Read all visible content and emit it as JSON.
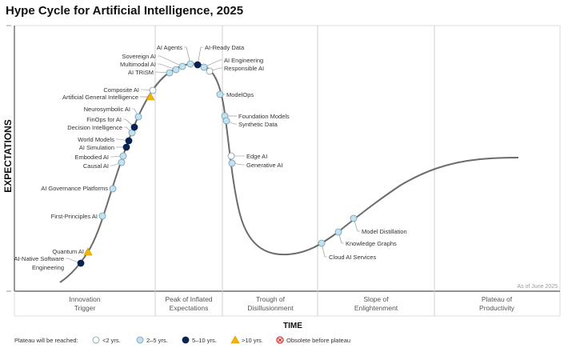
{
  "title": "Hype Cycle for Artificial Intelligence, 2025",
  "y_axis_label": "EXPECTATIONS",
  "x_axis_label": "TIME",
  "as_of": "As of June 2025",
  "phases": [
    {
      "line1": "Innovation",
      "line2": "Trigger"
    },
    {
      "line1": "Peak of Inflated",
      "line2": "Expectations"
    },
    {
      "line1": "Trough of",
      "line2": "Disillusionment"
    },
    {
      "line1": "Slope of",
      "line2": "Enlightenment"
    },
    {
      "line1": "Plateau of",
      "line2": "Productivity"
    }
  ],
  "legend": {
    "title": "Plateau will be reached:",
    "items": [
      {
        "key": "lt2",
        "label": "<2 yrs."
      },
      {
        "key": "2to5",
        "label": "2–5 yrs."
      },
      {
        "key": "5to10",
        "label": "5–10 yrs."
      },
      {
        "key": "gt10",
        "label": ">10 yrs."
      },
      {
        "key": "obsolete",
        "label": "Obsolete before plateau"
      }
    ]
  },
  "colors": {
    "lt2": "#ffffff",
    "2to5": "#bfe3f2",
    "5to10": "#0b2350",
    "gt10": "#f2b705",
    "obsolete": "#e0312b",
    "curve": "#6b6b6b"
  },
  "technologies": [
    {
      "name": "AI-Native Software Engineering",
      "plateau": "5to10",
      "phase": "Innovation Trigger"
    },
    {
      "name": "Quantum AI",
      "plateau": "gt10",
      "phase": "Innovation Trigger"
    },
    {
      "name": "First-Principles AI",
      "plateau": "2to5",
      "phase": "Innovation Trigger"
    },
    {
      "name": "AI Governance Platforms",
      "plateau": "2to5",
      "phase": "Innovation Trigger"
    },
    {
      "name": "Causal AI",
      "plateau": "2to5",
      "phase": "Innovation Trigger"
    },
    {
      "name": "Embodied AI",
      "plateau": "2to5",
      "phase": "Innovation Trigger"
    },
    {
      "name": "AI Simulation",
      "plateau": "5to10",
      "phase": "Innovation Trigger"
    },
    {
      "name": "World Models",
      "plateau": "5to10",
      "phase": "Innovation Trigger"
    },
    {
      "name": "Decision Intelligence",
      "plateau": "2to5",
      "phase": "Innovation Trigger"
    },
    {
      "name": "FinOps for AI",
      "plateau": "5to10",
      "phase": "Innovation Trigger"
    },
    {
      "name": "Neurosymbolic AI",
      "plateau": "2to5",
      "phase": "Innovation Trigger"
    },
    {
      "name": "Artificial General Intelligence",
      "plateau": "gt10",
      "phase": "Innovation Trigger"
    },
    {
      "name": "Composite AI",
      "plateau": "lt2",
      "phase": "Innovation Trigger"
    },
    {
      "name": "AI TRiSM",
      "plateau": "2to5",
      "phase": "Peak of Inflated Expectations"
    },
    {
      "name": "Multimodal AI",
      "plateau": "2to5",
      "phase": "Peak of Inflated Expectations"
    },
    {
      "name": "Sovereign AI",
      "plateau": "2to5",
      "phase": "Peak of Inflated Expectations"
    },
    {
      "name": "AI Agents",
      "plateau": "2to5",
      "phase": "Peak of Inflated Expectations"
    },
    {
      "name": "AI-Ready Data",
      "plateau": "5to10",
      "phase": "Peak of Inflated Expectations"
    },
    {
      "name": "AI Engineering",
      "plateau": "2to5",
      "phase": "Peak of Inflated Expectations"
    },
    {
      "name": "Responsible AI",
      "plateau": "lt2",
      "phase": "Peak of Inflated Expectations"
    },
    {
      "name": "ModelOps",
      "plateau": "2to5",
      "phase": "Trough of Disillusionment"
    },
    {
      "name": "Foundation Models",
      "plateau": "2to5",
      "phase": "Trough of Disillusionment"
    },
    {
      "name": "Synthetic Data",
      "plateau": "2to5",
      "phase": "Trough of Disillusionment"
    },
    {
      "name": "Edge AI",
      "plateau": "lt2",
      "phase": "Trough of Disillusionment"
    },
    {
      "name": "Generative AI",
      "plateau": "2to5",
      "phase": "Trough of Disillusionment"
    },
    {
      "name": "Cloud AI Services",
      "plateau": "2to5",
      "phase": "Slope of Enlightenment"
    },
    {
      "name": "Knowledge Graphs",
      "plateau": "2to5",
      "phase": "Slope of Enlightenment"
    },
    {
      "name": "Model Distillation",
      "plateau": "2to5",
      "phase": "Slope of Enlightenment"
    }
  ]
}
